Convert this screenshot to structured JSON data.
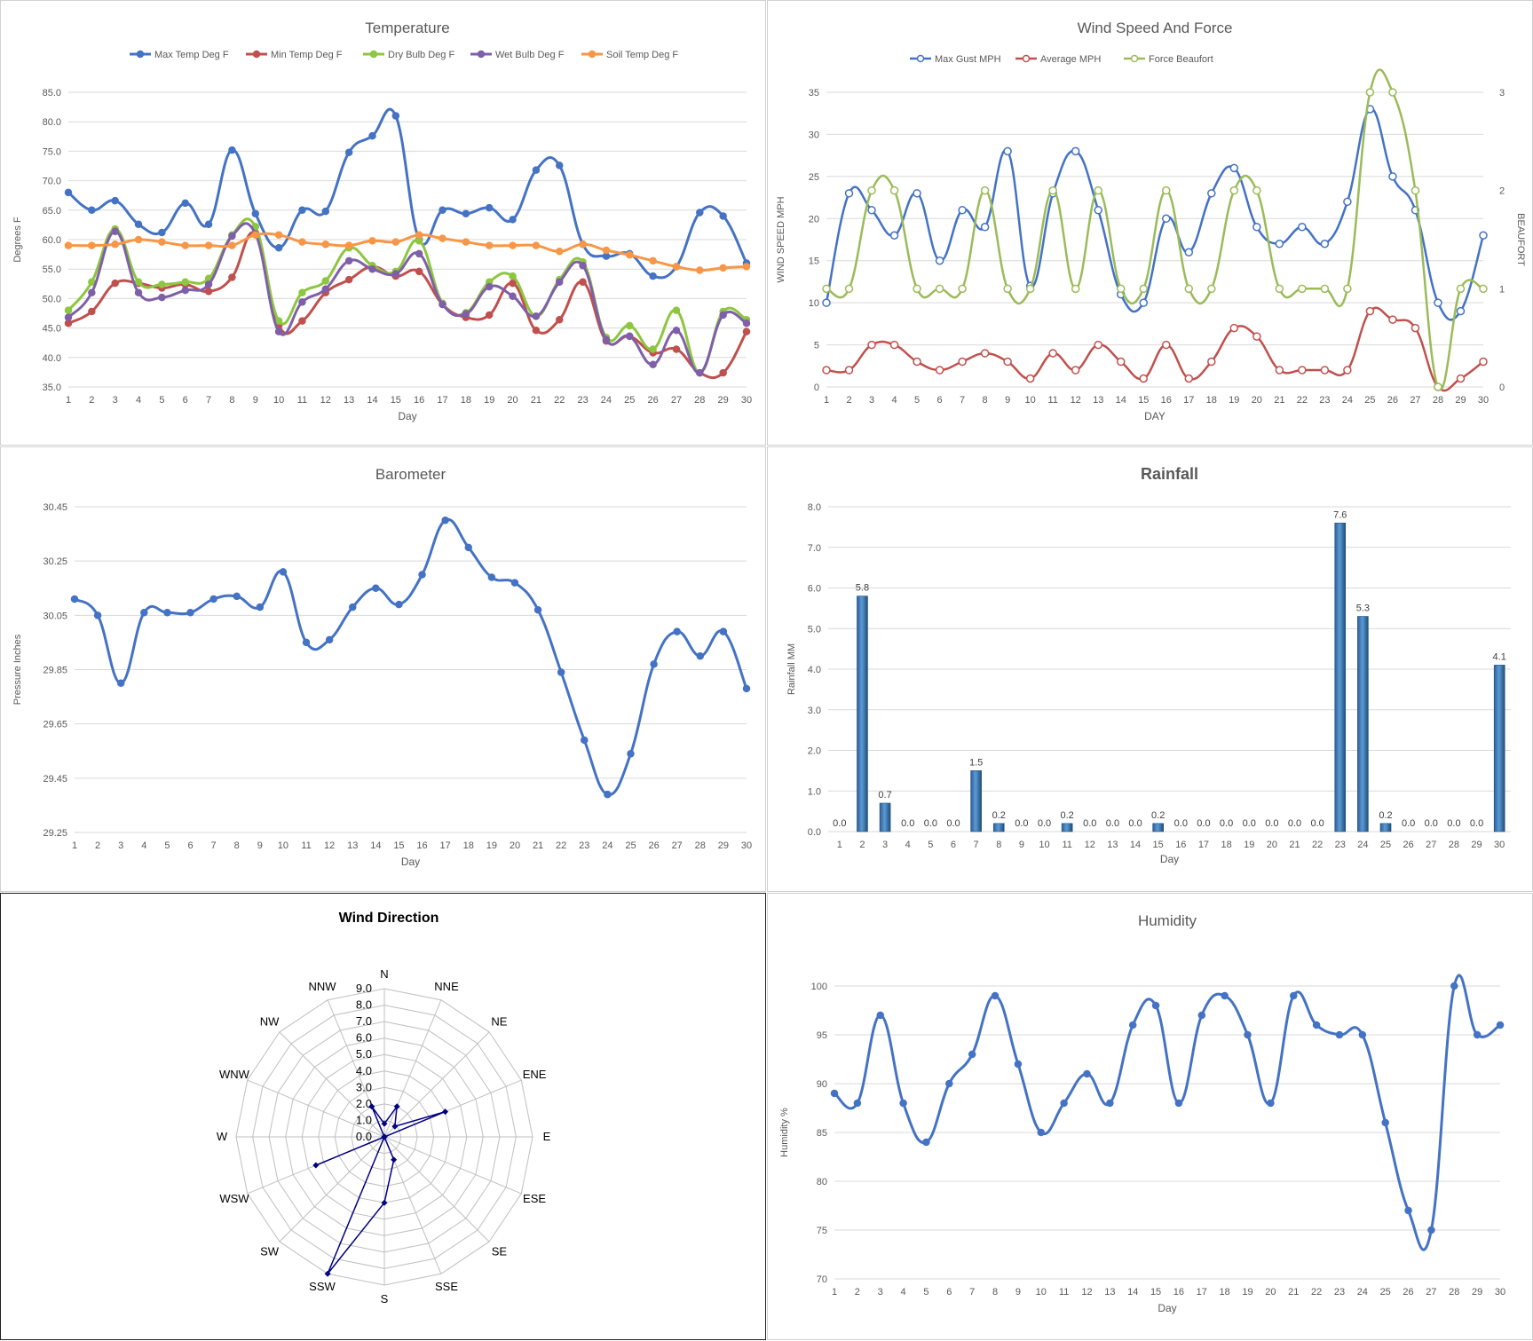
{
  "chart_data": [
    {
      "type": "line",
      "title": "Temperature",
      "xlabel": "Day",
      "ylabel": "Degrees F",
      "ylim": [
        35.0,
        85.0
      ],
      "yticks": [
        "35.0",
        "40.0",
        "45.0",
        "50.0",
        "55.0",
        "60.0",
        "65.0",
        "70.0",
        "75.0",
        "80.0",
        "85.0"
      ],
      "x": [
        1,
        2,
        3,
        4,
        5,
        6,
        7,
        8,
        9,
        10,
        11,
        12,
        13,
        14,
        15,
        16,
        17,
        18,
        19,
        20,
        21,
        22,
        23,
        24,
        25,
        26,
        27,
        28,
        29,
        30
      ],
      "legend": "top",
      "grid": true,
      "series": [
        {
          "name": "Max Temp Deg F",
          "color": "#4472C4",
          "values": [
            68.0,
            65.0,
            66.6,
            62.6,
            61.2,
            66.2,
            62.6,
            75.2,
            64.4,
            58.6,
            65.0,
            64.8,
            74.8,
            77.6,
            81.0,
            60.0,
            65.0,
            64.4,
            65.4,
            63.4,
            71.8,
            72.6,
            59.2,
            57.2,
            57.6,
            53.8,
            55.4,
            64.6,
            64.0,
            56.0
          ]
        },
        {
          "name": "Min Temp Deg F",
          "color": "#C0504D",
          "values": [
            45.8,
            47.8,
            52.6,
            52.6,
            51.8,
            52.4,
            51.2,
            53.6,
            61.0,
            45.4,
            46.2,
            51.0,
            53.2,
            55.4,
            53.8,
            54.6,
            49.0,
            46.8,
            47.2,
            52.6,
            44.6,
            46.4,
            52.8,
            42.8,
            43.6,
            40.8,
            41.4,
            37.4,
            37.4,
            44.4
          ]
        },
        {
          "name": "Dry Bulb Deg F",
          "color": "#8DC63F",
          "values": [
            48.0,
            52.8,
            61.8,
            52.8,
            52.4,
            52.8,
            53.4,
            60.8,
            62.2,
            46.2,
            51.0,
            53.0,
            58.6,
            55.6,
            54.6,
            59.8,
            49.2,
            47.6,
            52.8,
            53.8,
            47.0,
            53.2,
            56.2,
            43.4,
            45.4,
            41.4,
            48.0,
            37.4,
            47.8,
            46.4
          ]
        },
        {
          "name": "Wet Bulb Deg F",
          "color": "#7F5FA8",
          "values": [
            46.8,
            51.0,
            61.4,
            51.0,
            50.2,
            51.4,
            52.4,
            60.6,
            61.0,
            44.4,
            49.4,
            51.6,
            56.4,
            55.0,
            54.2,
            57.6,
            49.0,
            47.4,
            52.0,
            50.4,
            47.0,
            52.8,
            55.6,
            43.0,
            43.6,
            38.8,
            44.6,
            37.4,
            47.2,
            45.8
          ]
        },
        {
          "name": "Soil Temp Deg F",
          "color": "#F79646",
          "values": [
            59.0,
            59.0,
            59.2,
            60.0,
            59.6,
            59.0,
            59.0,
            59.0,
            60.8,
            60.8,
            59.6,
            59.2,
            59.0,
            59.8,
            59.6,
            60.8,
            60.2,
            59.6,
            59.0,
            59.0,
            59.0,
            58.0,
            59.2,
            58.2,
            57.4,
            56.4,
            55.4,
            54.8,
            55.2,
            55.4
          ]
        }
      ]
    },
    {
      "type": "line",
      "title": "Wind Speed And Force",
      "xlabel": "DAY",
      "ylabel": "WIND SPEED MPH",
      "y2label": "BEAUFORT",
      "ylim": [
        0,
        35
      ],
      "y2lim": [
        0,
        3
      ],
      "yticks": [
        "0",
        "5",
        "10",
        "15",
        "20",
        "25",
        "30",
        "35"
      ],
      "y2ticks": [
        "0",
        "1",
        "2",
        "3"
      ],
      "x": [
        1,
        2,
        3,
        4,
        5,
        6,
        7,
        8,
        9,
        10,
        11,
        12,
        13,
        14,
        15,
        16,
        17,
        18,
        19,
        20,
        21,
        22,
        23,
        24,
        25,
        26,
        27,
        28,
        29,
        30
      ],
      "legend": "top",
      "grid": true,
      "series": [
        {
          "name": "Max Gust MPH",
          "color": "#4472C4",
          "axis": "left",
          "values": [
            10,
            23,
            21,
            18,
            23,
            15,
            21,
            19,
            28,
            12,
            23,
            28,
            21,
            11,
            10,
            20,
            16,
            23,
            26,
            19,
            17,
            19,
            17,
            22,
            33,
            25,
            21,
            10,
            9,
            18
          ]
        },
        {
          "name": "Average MPH",
          "color": "#C0504D",
          "axis": "left",
          "values": [
            2,
            2,
            5,
            5,
            3,
            2,
            3,
            4,
            3,
            1,
            4,
            2,
            5,
            3,
            1,
            5,
            1,
            3,
            7,
            6,
            2,
            2,
            2,
            2,
            9,
            8,
            7,
            0,
            1,
            3
          ]
        },
        {
          "name": "Force Beaufort",
          "color": "#9BBB59",
          "axis": "right",
          "values": [
            1,
            1,
            2,
            2,
            1,
            1,
            1,
            2,
            1,
            1,
            2,
            1,
            2,
            1,
            1,
            2,
            1,
            1,
            2,
            2,
            1,
            1,
            1,
            1,
            3,
            3,
            2,
            0,
            1,
            1
          ]
        }
      ]
    },
    {
      "type": "line",
      "title": "Barometer",
      "xlabel": "Day",
      "ylabel": "Pressure Inches",
      "ylim": [
        29.25,
        30.45
      ],
      "yticks": [
        "29.25",
        "29.45",
        "29.65",
        "29.85",
        "30.05",
        "30.25",
        "30.45"
      ],
      "x": [
        1,
        2,
        3,
        4,
        5,
        6,
        7,
        8,
        9,
        10,
        11,
        12,
        13,
        14,
        15,
        16,
        17,
        18,
        19,
        20,
        21,
        22,
        23,
        24,
        25,
        26,
        27,
        28,
        29,
        30
      ],
      "grid": true,
      "series": [
        {
          "name": "",
          "color": "#4472C4",
          "values": [
            30.11,
            30.05,
            29.8,
            30.06,
            30.06,
            30.06,
            30.11,
            30.12,
            30.08,
            30.21,
            29.95,
            29.96,
            30.08,
            30.15,
            30.09,
            30.2,
            30.4,
            30.3,
            30.19,
            30.17,
            30.07,
            29.84,
            29.59,
            29.39,
            29.54,
            29.87,
            29.99,
            29.9,
            29.99,
            29.78
          ]
        }
      ]
    },
    {
      "type": "bar",
      "title": "Rainfall",
      "xlabel": "Day",
      "ylabel": "Rainfall MM",
      "ylim": [
        0.0,
        8.0
      ],
      "yticks": [
        "0.0",
        "1.0",
        "2.0",
        "3.0",
        "4.0",
        "5.0",
        "6.0",
        "7.0",
        "8.0"
      ],
      "categories": [
        "1",
        "2",
        "3",
        "4",
        "5",
        "6",
        "7",
        "8",
        "9",
        "10",
        "11",
        "12",
        "13",
        "14",
        "15",
        "16",
        "17",
        "18",
        "19",
        "20",
        "21",
        "22",
        "23",
        "24",
        "25",
        "26",
        "27",
        "28",
        "29",
        "30"
      ],
      "values": [
        0.0,
        5.8,
        0.7,
        0.0,
        0.0,
        0.0,
        1.5,
        0.2,
        0.0,
        0.0,
        0.2,
        0.0,
        0.0,
        0.0,
        0.2,
        0.0,
        0.0,
        0.0,
        0.0,
        0.0,
        0.0,
        0.0,
        7.6,
        5.3,
        0.2,
        0.0,
        0.0,
        0.0,
        0.0,
        4.1
      ],
      "labels": [
        "0.0",
        "5.8",
        "0.7",
        "0.0",
        "0.0",
        "0.0",
        "1.5",
        "0.2",
        "0.0",
        "0.0",
        "0.2",
        "0.0",
        "0.0",
        "0.0",
        "0.2",
        "0.0",
        "0.0",
        "0.0",
        "0.0",
        "0.0",
        "0.0",
        "0.0",
        "7.6",
        "5.3",
        "0.2",
        "0.0",
        "0.0",
        "0.0",
        "0.0",
        "4.1"
      ],
      "grid": true,
      "bar_color": "#4F81BD"
    },
    {
      "type": "radar",
      "title": "Wind Direction",
      "categories": [
        "N",
        "NNE",
        "NE",
        "ENE",
        "E",
        "ESE",
        "SE",
        "SSE",
        "S",
        "SSW",
        "SW",
        "WSW",
        "W",
        "WNW",
        "NW",
        "NNW"
      ],
      "values": [
        0.8,
        2.0,
        0.9,
        4.0,
        0.0,
        0.0,
        0.0,
        1.5,
        4.0,
        9.0,
        0.0,
        4.5,
        0.0,
        0.0,
        0.0,
        2.0
      ],
      "rlim": [
        0.0,
        9.0
      ],
      "rticks": [
        "0.0",
        "1.0",
        "2.0",
        "3.0",
        "4.0",
        "5.0",
        "6.0",
        "7.0",
        "8.0",
        "9.0"
      ],
      "color": "#000080"
    },
    {
      "type": "line",
      "title": "Humidity",
      "xlabel": "Day",
      "ylabel": "Humidity %",
      "ylim": [
        70,
        100
      ],
      "yticks": [
        "70",
        "75",
        "80",
        "85",
        "90",
        "95",
        "100"
      ],
      "x": [
        1,
        2,
        3,
        4,
        5,
        6,
        7,
        8,
        9,
        10,
        11,
        12,
        13,
        14,
        15,
        16,
        17,
        18,
        19,
        20,
        21,
        22,
        23,
        24,
        25,
        26,
        27,
        28,
        29,
        30
      ],
      "grid": true,
      "series": [
        {
          "name": "",
          "color": "#4472C4",
          "values": [
            89,
            88,
            97,
            88,
            84,
            90,
            93,
            99,
            92,
            85,
            88,
            91,
            88,
            96,
            98,
            88,
            97,
            99,
            95,
            88,
            99,
            96,
            95,
            95,
            86,
            77,
            75,
            100,
            95,
            96
          ]
        }
      ]
    }
  ]
}
